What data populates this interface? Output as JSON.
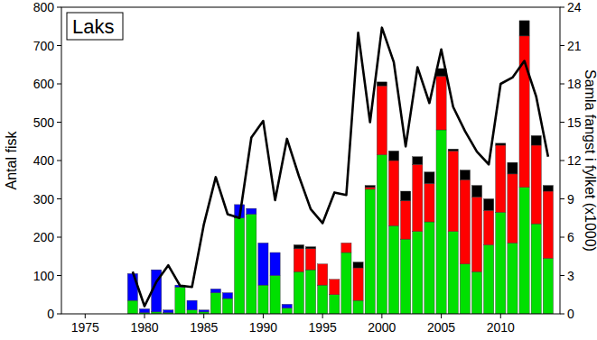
{
  "chart_data": {
    "type": "bar",
    "title": "Laks",
    "stacked": true,
    "y_label": "Antal fisk",
    "y2_label": "Samla fangst i fylket (x1000)",
    "x": [
      1979,
      1980,
      1981,
      1982,
      1983,
      1984,
      1985,
      1986,
      1987,
      1988,
      1989,
      1990,
      1991,
      1992,
      1993,
      1994,
      1995,
      1996,
      1997,
      1998,
      1999,
      2000,
      2001,
      2002,
      2003,
      2004,
      2005,
      2006,
      2007,
      2008,
      2009,
      2010,
      2011,
      2012,
      2013,
      2014
    ],
    "series": [
      {
        "color": "#00e000",
        "values": [
          35,
          3,
          5,
          3,
          70,
          10,
          5,
          55,
          40,
          250,
          260,
          75,
          100,
          15,
          110,
          115,
          75,
          50,
          160,
          35,
          325,
          415,
          230,
          195,
          215,
          240,
          480,
          215,
          130,
          110,
          180,
          265,
          185,
          330,
          235,
          145
        ]
      },
      {
        "color": "#ff0000",
        "values": [
          0,
          0,
          0,
          0,
          0,
          0,
          0,
          0,
          0,
          0,
          0,
          0,
          0,
          0,
          60,
          55,
          55,
          40,
          25,
          85,
          5,
          180,
          170,
          100,
          175,
          100,
          140,
          210,
          220,
          195,
          90,
          175,
          180,
          395,
          205,
          175
        ]
      },
      {
        "color": "#000000",
        "values": [
          0,
          0,
          0,
          0,
          0,
          0,
          0,
          0,
          0,
          0,
          0,
          0,
          0,
          0,
          10,
          5,
          0,
          0,
          0,
          15,
          5,
          10,
          25,
          25,
          20,
          30,
          20,
          5,
          25,
          30,
          30,
          5,
          30,
          40,
          25,
          15
        ]
      },
      {
        "color": "#0000ff",
        "values": [
          70,
          10,
          110,
          7,
          5,
          25,
          5,
          10,
          15,
          35,
          15,
          110,
          60,
          10,
          0,
          0,
          0,
          0,
          0,
          0,
          0,
          0,
          0,
          0,
          0,
          0,
          0,
          0,
          0,
          0,
          0,
          0,
          0,
          0,
          0,
          0
        ]
      },
      {
        "type": "line",
        "axis": "y2",
        "color": "#000000",
        "values": [
          3.3,
          0.6,
          2.5,
          3.8,
          2.2,
          2.1,
          7,
          10.7,
          7.8,
          7.5,
          13.8,
          15.1,
          8.9,
          13.7,
          10.8,
          8.2,
          7.1,
          9.5,
          9.3,
          22,
          15,
          22.4,
          19.7,
          13.1,
          19.3,
          16.5,
          20.7,
          16.2,
          14.3,
          12.7,
          11.7,
          18,
          18.5,
          19.8,
          17,
          12.3
        ]
      }
    ],
    "xlim": [
      1973,
      2015
    ],
    "xticks": [
      1975,
      1980,
      1985,
      1990,
      1995,
      2000,
      2005,
      2010
    ],
    "ylim": [
      0,
      800
    ],
    "yticks": [
      0,
      100,
      200,
      300,
      400,
      500,
      600,
      700,
      800
    ],
    "y2lim": [
      0,
      24
    ],
    "y2ticks": [
      0,
      3,
      6,
      9,
      12,
      15,
      18,
      21,
      24
    ],
    "grid": false
  }
}
